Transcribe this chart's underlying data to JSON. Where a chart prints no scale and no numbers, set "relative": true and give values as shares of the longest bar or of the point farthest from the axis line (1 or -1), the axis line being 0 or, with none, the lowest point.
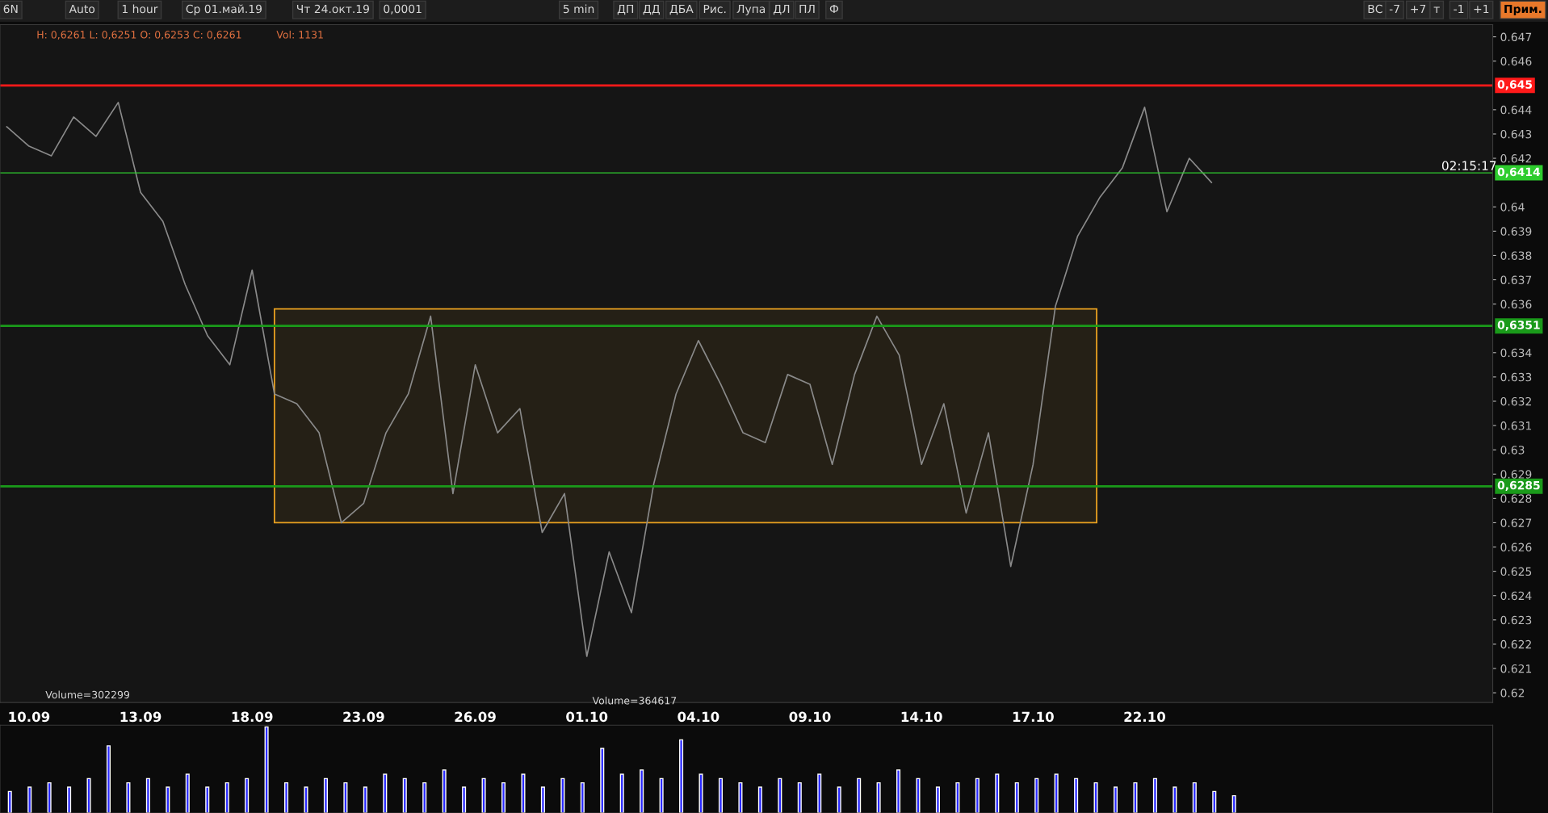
{
  "chart_data": [
    {
      "type": "line",
      "categories": [
        null,
        "10.09",
        null,
        null,
        null,
        null,
        "13.09",
        null,
        null,
        null,
        null,
        "18.09",
        null,
        null,
        null,
        null,
        "23.09",
        null,
        null,
        null,
        null,
        "26.09",
        null,
        null,
        null,
        null,
        "01.10",
        null,
        null,
        null,
        null,
        "04.10",
        null,
        null,
        null,
        null,
        "09.10",
        null,
        null,
        null,
        null,
        "14.10",
        null,
        null,
        null,
        null,
        "17.10",
        null,
        null,
        null,
        null,
        "22.10",
        null,
        null,
        null,
        null,
        null,
        null,
        null,
        null,
        null,
        null,
        null,
        null,
        null,
        null,
        null
      ],
      "ylim": [
        0.6196,
        0.6475
      ],
      "yticks": [
        0.62,
        0.621,
        0.622,
        0.623,
        0.624,
        0.625,
        0.626,
        0.627,
        0.628,
        0.629,
        0.63,
        0.631,
        0.632,
        0.633,
        0.634,
        0.636,
        0.637,
        0.638,
        0.639,
        0.64,
        0.642,
        0.643,
        0.644,
        0.646,
        0.647
      ],
      "series": [
        {
          "color": "#8a8a8a",
          "values": [
            0.6433,
            0.6425,
            0.6421,
            0.6437,
            0.6429,
            0.6443,
            0.6406,
            0.6394,
            0.6368,
            0.6347,
            0.6335,
            0.6374,
            0.6323,
            0.6319,
            0.6307,
            0.627,
            0.6278,
            0.6307,
            0.6323,
            0.6355,
            0.6282,
            0.6335,
            0.6307,
            0.6317,
            0.6266,
            0.6282,
            0.6215,
            0.6258,
            0.6233,
            0.6286,
            0.6323,
            0.6345,
            0.6327,
            0.6307,
            0.6303,
            0.6331,
            0.6327,
            0.6294,
            0.6331,
            0.6355,
            0.6339,
            0.6294,
            0.6319,
            0.6274,
            0.6307,
            0.6252,
            0.6294,
            0.6359,
            0.6388,
            0.6404,
            0.6416,
            0.6441,
            0.6398,
            0.642,
            0.641,
            null,
            null,
            null,
            null,
            null,
            null,
            null,
            null,
            null,
            null,
            null,
            null
          ]
        }
      ],
      "bands": [
        {
          "axis": "y",
          "from": 0.627,
          "to": 0.6358,
          "color": "#e8a020"
        }
      ],
      "ref_lines": [
        {
          "axis": "y",
          "value": 0.645,
          "label": "0,645",
          "color": "#ff1a1a"
        },
        {
          "axis": "y",
          "value": 0.6351,
          "label": "0,6351",
          "color": "#1a9a1a"
        },
        {
          "axis": "y",
          "value": 0.6285,
          "label": "0,6285",
          "color": "#1a9a1a"
        },
        {
          "axis": "y",
          "value": 0.6414,
          "label": "0,6414",
          "color": "#2ecc2e"
        }
      ],
      "annotations": [
        "H: 0,6261 L: 0,6251 O: 0,6253 C: 0,6261",
        "Vol: 1131",
        "Volume=302299",
        "Volume=364617",
        "02:15:17",
        "6N",
        "Auto",
        "1 hour",
        "Ср 01.май.19",
        "Чт 24.окт.19",
        "0,0001",
        "5 min",
        "ДП",
        "ДД",
        "ДБА",
        "Рис.",
        "Лупа",
        "ДЛ",
        "ПЛ",
        "Ф",
        "ВС",
        "-7",
        "+7",
        "т",
        "-1",
        "+1",
        "Прим."
      ]
    },
    {
      "type": "bar",
      "relative": true,
      "color": "#2828ff",
      "categories": [
        null,
        null,
        null,
        null,
        null,
        null,
        null,
        null,
        null,
        null,
        null,
        null,
        null,
        null,
        null,
        null,
        null,
        null,
        null,
        null,
        null,
        null,
        null,
        null,
        null,
        null,
        null,
        null,
        null,
        null,
        null,
        null,
        null,
        null,
        null,
        null,
        null,
        null,
        null,
        null,
        null,
        null,
        null,
        null,
        null,
        null,
        null,
        null,
        null,
        null,
        null,
        null,
        null,
        null,
        null,
        null,
        null,
        null,
        null,
        null,
        null,
        null,
        null
      ],
      "values": [
        0.25,
        0.3,
        0.35,
        0.3,
        0.4,
        0.78,
        0.35,
        0.4,
        0.3,
        0.45,
        0.3,
        0.35,
        0.4,
        1.0,
        0.35,
        0.3,
        0.4,
        0.35,
        0.3,
        0.45,
        0.4,
        0.35,
        0.5,
        0.3,
        0.4,
        0.35,
        0.45,
        0.3,
        0.4,
        0.35,
        0.75,
        0.45,
        0.5,
        0.4,
        0.85,
        0.45,
        0.4,
        0.35,
        0.3,
        0.4,
        0.35,
        0.45,
        0.3,
        0.4,
        0.35,
        0.5,
        0.4,
        0.3,
        0.35,
        0.4,
        0.45,
        0.35,
        0.4,
        0.45,
        0.4,
        0.35,
        0.3,
        0.35,
        0.4,
        0.3,
        0.35,
        0.25,
        0.2
      ]
    }
  ]
}
